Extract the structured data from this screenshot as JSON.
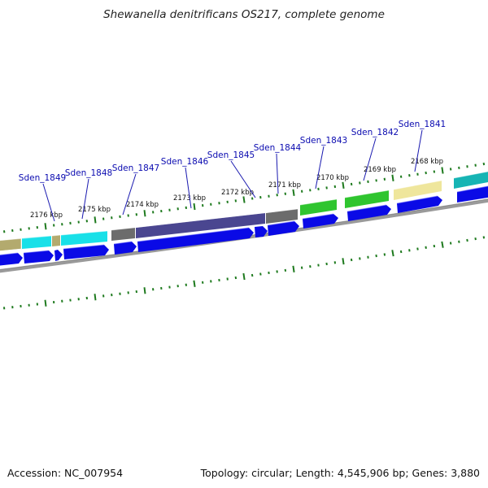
{
  "title": "Shewanella denitrificans OS217, complete genome",
  "footer": {
    "accession": "Accession: NC_007954",
    "summary": "Topology: circular; Length: 4,545,906 bp; Genes: 3,880"
  },
  "colors": {
    "backbone": "#888888",
    "tick": "#1e7a1e",
    "cds": "#0a0ae6",
    "label": "#0a0ab0",
    "cyan": "#19e0e8",
    "khaki": "#b3aa6e",
    "dark_slate": "#4a4690",
    "gray": "#6c6c6c",
    "green": "#2fc52f",
    "pale_yellow": "#efe69c",
    "teal": "#16b4b4"
  },
  "kbp_labels": [
    "2176 kbp",
    "2175 kbp",
    "2174 kbp",
    "2173 kbp",
    "2172 kbp",
    "2171 kbp",
    "2170 kbp",
    "2169 kbp",
    "2168 kbp"
  ],
  "gene_labels": [
    "Sden_1849",
    "Sden_1848",
    "Sden_1847",
    "Sden_1846",
    "Sden_1845",
    "Sden_1844",
    "Sden_1843",
    "Sden_1842",
    "Sden_1841"
  ]
}
